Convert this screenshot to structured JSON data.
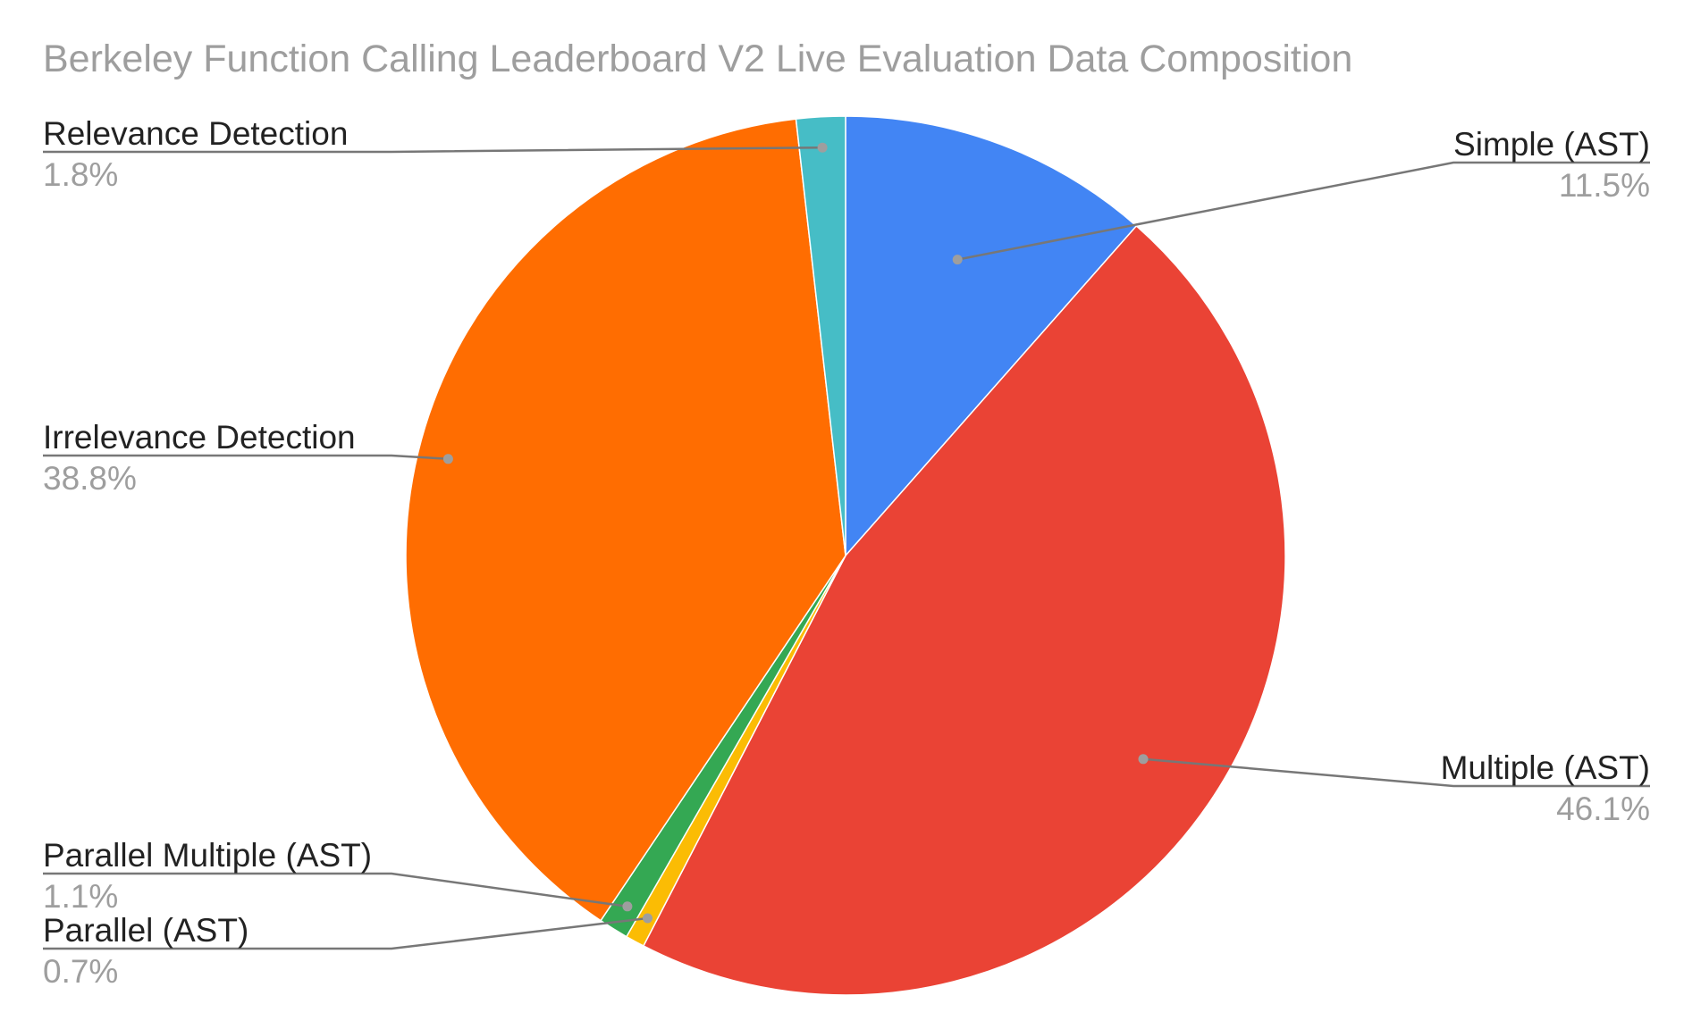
{
  "chart_data": {
    "type": "pie",
    "title": "Berkeley Function Calling Leaderboard V2 Live Evaluation Data Composition",
    "slices": [
      {
        "name": "Simple (AST)",
        "value": 11.5,
        "label": "11.5%",
        "color": "#4285f4"
      },
      {
        "name": "Multiple (AST)",
        "value": 46.1,
        "label": "46.1%",
        "color": "#ea4335"
      },
      {
        "name": "Parallel (AST)",
        "value": 0.7,
        "label": "0.7%",
        "color": "#fbbc04"
      },
      {
        "name": "Parallel Multiple (AST)",
        "value": 1.1,
        "label": "1.1%",
        "color": "#34a853"
      },
      {
        "name": "Irrelevance Detection",
        "value": 38.8,
        "label": "38.8%",
        "color": "#ff6d01"
      },
      {
        "name": "Relevance Detection",
        "value": 1.8,
        "label": "1.8%",
        "color": "#46bdc6"
      }
    ]
  }
}
